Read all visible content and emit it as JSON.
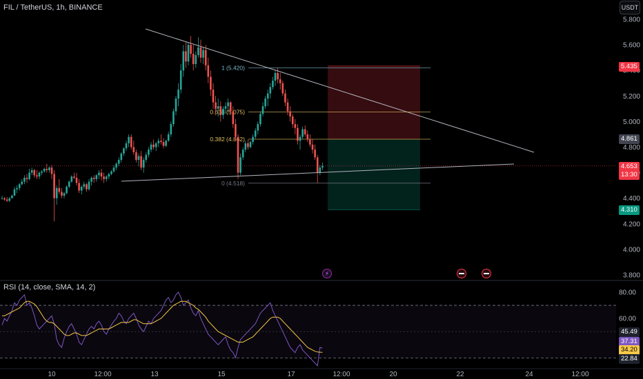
{
  "header": {
    "symbol": "FIL / TetherUS, 1h, BINANCE",
    "currency_button": "USDT"
  },
  "price_axis": {
    "ticks": [
      "5.800",
      "5.600",
      "5.400",
      "5.200",
      "5.000",
      "4.800",
      "4.600",
      "4.400",
      "4.200",
      "4.000",
      "3.800"
    ],
    "current_price": "4.653",
    "countdown": "13:30",
    "target_price": "5.435",
    "entry_price": "4.861",
    "stop_price": "4.310"
  },
  "time_axis": {
    "labels": [
      "10",
      "12:00",
      "13",
      "15",
      "17",
      "12:00",
      "20",
      "22",
      "24",
      "12:00"
    ]
  },
  "fibonacci": {
    "levels": [
      {
        "label": "1 (5.420)",
        "price": 5.42
      },
      {
        "label": "0.618 (5.075)",
        "price": 5.075
      },
      {
        "label": "0.382 (4.862)",
        "price": 4.862
      },
      {
        "label": "0 (4.518)",
        "price": 4.518
      }
    ]
  },
  "position_tool": {
    "entry": 4.861,
    "take_profit": 5.435,
    "stop": 4.31
  },
  "trendlines": {
    "upper": {
      "from": [
        0,
        5.74
      ],
      "to": [
        240,
        4.78
      ]
    },
    "lower": {
      "from": [
        0,
        4.52
      ],
      "to": [
        180,
        4.63
      ]
    }
  },
  "rsi": {
    "title": "RSI (14, close, SMA, 14, 2)",
    "ticks": [
      "80.00",
      "60.00",
      "45.49",
      "37.31",
      "34.20",
      "22.84"
    ],
    "rsi_value": "37.31",
    "sma_value": "34.20",
    "band_upper": "45.49",
    "band_lower": "22.84",
    "band_upper_value": 45.49,
    "band_lower_value": 22.84,
    "overbought": 70,
    "oversold": 30
  },
  "events": {
    "bolt_icon": "lightning-bolt-icon",
    "flag_icon": "us-flag-icon"
  },
  "chart_data": {
    "type": "candlestick",
    "xlabel": "",
    "ylabel": "",
    "ylim": [
      3.8,
      5.86
    ],
    "candles": [
      [
        4.4,
        4.42,
        4.39,
        4.4
      ],
      [
        4.4,
        4.41,
        4.38,
        4.39
      ],
      [
        4.39,
        4.41,
        4.37,
        4.38
      ],
      [
        4.38,
        4.41,
        4.37,
        4.4
      ],
      [
        4.4,
        4.43,
        4.4,
        4.42
      ],
      [
        4.42,
        4.49,
        4.42,
        4.47
      ],
      [
        4.47,
        4.5,
        4.44,
        4.48
      ],
      [
        4.48,
        4.52,
        4.46,
        4.51
      ],
      [
        4.51,
        4.55,
        4.5,
        4.53
      ],
      [
        4.53,
        4.58,
        4.51,
        4.56
      ],
      [
        4.56,
        4.59,
        4.52,
        4.55
      ],
      [
        4.55,
        4.63,
        4.54,
        4.6
      ],
      [
        4.6,
        4.64,
        4.58,
        4.62
      ],
      [
        4.62,
        4.63,
        4.56,
        4.58
      ],
      [
        4.58,
        4.62,
        4.55,
        4.57
      ],
      [
        4.57,
        4.61,
        4.55,
        4.6
      ],
      [
        4.6,
        4.62,
        4.58,
        4.61
      ],
      [
        4.61,
        4.64,
        4.6,
        4.63
      ],
      [
        4.63,
        4.67,
        4.6,
        4.62
      ],
      [
        4.62,
        4.65,
        4.6,
        4.64
      ],
      [
        4.64,
        4.66,
        4.55,
        4.59
      ],
      [
        4.59,
        4.62,
        4.22,
        4.4
      ],
      [
        4.4,
        4.5,
        4.35,
        4.48
      ],
      [
        4.48,
        4.55,
        4.43,
        4.45
      ],
      [
        4.45,
        4.48,
        4.4,
        4.42
      ],
      [
        4.42,
        4.45,
        4.4,
        4.44
      ],
      [
        4.44,
        4.5,
        4.43,
        4.49
      ],
      [
        4.49,
        4.54,
        4.48,
        4.53
      ],
      [
        4.53,
        4.58,
        4.52,
        4.57
      ],
      [
        4.57,
        4.6,
        4.55,
        4.56
      ],
      [
        4.56,
        4.6,
        4.5,
        4.52
      ],
      [
        4.52,
        4.55,
        4.44,
        4.46
      ],
      [
        4.46,
        4.5,
        4.43,
        4.49
      ],
      [
        4.49,
        4.53,
        4.47,
        4.51
      ],
      [
        4.51,
        4.52,
        4.45,
        4.47
      ],
      [
        4.47,
        4.55,
        4.46,
        4.53
      ],
      [
        4.53,
        4.57,
        4.5,
        4.56
      ],
      [
        4.56,
        4.58,
        4.52,
        4.55
      ],
      [
        4.55,
        4.59,
        4.53,
        4.58
      ],
      [
        4.58,
        4.62,
        4.55,
        4.6
      ],
      [
        4.6,
        4.63,
        4.54,
        4.57
      ],
      [
        4.57,
        4.6,
        4.52,
        4.55
      ],
      [
        4.55,
        4.58,
        4.53,
        4.57
      ],
      [
        4.57,
        4.6,
        4.55,
        4.59
      ],
      [
        4.59,
        4.62,
        4.58,
        4.61
      ],
      [
        4.61,
        4.66,
        4.6,
        4.64
      ],
      [
        4.64,
        4.68,
        4.62,
        4.67
      ],
      [
        4.67,
        4.72,
        4.65,
        4.7
      ],
      [
        4.7,
        4.76,
        4.68,
        4.75
      ],
      [
        4.75,
        4.8,
        4.73,
        4.79
      ],
      [
        4.79,
        4.85,
        4.77,
        4.83
      ],
      [
        4.83,
        4.9,
        4.8,
        4.88
      ],
      [
        4.88,
        4.9,
        4.78,
        4.8
      ],
      [
        4.8,
        4.85,
        4.74,
        4.76
      ],
      [
        4.76,
        4.78,
        4.68,
        4.7
      ],
      [
        4.7,
        4.75,
        4.65,
        4.73
      ],
      [
        4.73,
        4.77,
        4.62,
        4.64
      ],
      [
        4.64,
        4.72,
        4.6,
        4.7
      ],
      [
        4.7,
        4.76,
        4.68,
        4.74
      ],
      [
        4.74,
        4.8,
        4.72,
        4.78
      ],
      [
        4.78,
        4.84,
        4.76,
        4.82
      ],
      [
        4.82,
        4.86,
        4.78,
        4.8
      ],
      [
        4.8,
        4.84,
        4.77,
        4.83
      ],
      [
        4.83,
        4.87,
        4.8,
        4.85
      ],
      [
        4.85,
        4.9,
        4.82,
        4.84
      ],
      [
        4.84,
        4.87,
        4.79,
        4.81
      ],
      [
        4.81,
        4.86,
        4.8,
        4.85
      ],
      [
        4.85,
        4.92,
        4.84,
        4.9
      ],
      [
        4.9,
        5.0,
        4.88,
        4.98
      ],
      [
        4.98,
        5.1,
        4.96,
        5.08
      ],
      [
        5.08,
        5.2,
        5.05,
        5.18
      ],
      [
        5.18,
        5.3,
        5.12,
        5.25
      ],
      [
        5.25,
        5.45,
        5.22,
        5.4
      ],
      [
        5.4,
        5.6,
        5.35,
        5.55
      ],
      [
        5.55,
        5.62,
        5.42,
        5.47
      ],
      [
        5.47,
        5.62,
        5.44,
        5.6
      ],
      [
        5.6,
        5.67,
        5.5,
        5.53
      ],
      [
        5.53,
        5.6,
        5.4,
        5.45
      ],
      [
        5.45,
        5.55,
        5.42,
        5.52
      ],
      [
        5.52,
        5.66,
        5.5,
        5.58
      ],
      [
        5.58,
        5.64,
        5.46,
        5.5
      ],
      [
        5.5,
        5.58,
        5.45,
        5.56
      ],
      [
        5.56,
        5.6,
        5.4,
        5.44
      ],
      [
        5.44,
        5.5,
        5.3,
        5.35
      ],
      [
        5.35,
        5.4,
        5.2,
        5.25
      ],
      [
        5.25,
        5.3,
        5.1,
        5.15
      ],
      [
        5.15,
        5.2,
        5.05,
        5.1
      ],
      [
        5.1,
        5.18,
        5.04,
        5.12
      ],
      [
        5.12,
        5.16,
        5.0,
        5.05
      ],
      [
        5.05,
        5.12,
        5.02,
        5.1
      ],
      [
        5.1,
        5.15,
        5.06,
        5.12
      ],
      [
        5.12,
        5.18,
        5.08,
        5.15
      ],
      [
        5.15,
        5.16,
        5.05,
        5.08
      ],
      [
        5.08,
        5.12,
        4.95,
        4.98
      ],
      [
        4.98,
        5.02,
        4.85,
        4.88
      ],
      [
        4.88,
        4.9,
        4.55,
        4.6
      ],
      [
        4.6,
        4.75,
        4.58,
        4.72
      ],
      [
        4.72,
        4.8,
        4.7,
        4.78
      ],
      [
        4.78,
        4.85,
        4.76,
        4.83
      ],
      [
        4.83,
        4.86,
        4.78,
        4.8
      ],
      [
        4.8,
        4.85,
        4.79,
        4.84
      ],
      [
        4.84,
        4.9,
        4.82,
        4.88
      ],
      [
        4.88,
        4.95,
        4.86,
        4.93
      ],
      [
        4.93,
        5.0,
        4.9,
        4.98
      ],
      [
        4.98,
        5.08,
        4.96,
        5.06
      ],
      [
        5.06,
        5.15,
        5.04,
        5.12
      ],
      [
        5.12,
        5.2,
        5.1,
        5.18
      ],
      [
        5.18,
        5.25,
        5.12,
        5.22
      ],
      [
        5.22,
        5.3,
        5.18,
        5.27
      ],
      [
        5.27,
        5.35,
        5.25,
        5.32
      ],
      [
        5.32,
        5.4,
        5.28,
        5.38
      ],
      [
        5.38,
        5.42,
        5.3,
        5.33
      ],
      [
        5.33,
        5.38,
        5.25,
        5.3
      ],
      [
        5.3,
        5.32,
        5.2,
        5.22
      ],
      [
        5.22,
        5.25,
        5.12,
        5.15
      ],
      [
        5.15,
        5.18,
        5.05,
        5.08
      ],
      [
        5.08,
        5.12,
        5.0,
        5.04
      ],
      [
        5.04,
        5.06,
        4.95,
        4.98
      ],
      [
        4.98,
        5.02,
        4.9,
        4.95
      ],
      [
        4.95,
        4.98,
        4.82,
        4.85
      ],
      [
        4.85,
        4.9,
        4.78,
        4.88
      ],
      [
        4.88,
        4.96,
        4.86,
        4.94
      ],
      [
        4.94,
        4.97,
        4.88,
        4.9
      ],
      [
        4.9,
        4.93,
        4.84,
        4.86
      ],
      [
        4.86,
        4.9,
        4.8,
        4.82
      ],
      [
        4.82,
        4.86,
        4.75,
        4.78
      ],
      [
        4.78,
        4.82,
        4.7,
        4.72
      ],
      [
        4.72,
        4.74,
        4.52,
        4.6
      ],
      [
        4.6,
        4.66,
        4.58,
        4.64
      ],
      [
        4.64,
        4.68,
        4.62,
        4.653
      ]
    ],
    "rsi": [
      55,
      60,
      58,
      62,
      66,
      72,
      70,
      74,
      76,
      78,
      70,
      72,
      68,
      62,
      55,
      52,
      54,
      56,
      58,
      60,
      62,
      56,
      44,
      40,
      38,
      45,
      50,
      54,
      56,
      52,
      48,
      42,
      40,
      44,
      48,
      52,
      54,
      52,
      56,
      58,
      55,
      50,
      48,
      52,
      55,
      58,
      60,
      64,
      62,
      58,
      56,
      60,
      62,
      64,
      60,
      55,
      52,
      50,
      54,
      58,
      56,
      60,
      62,
      64,
      66,
      70,
      74,
      76,
      72,
      74,
      78,
      80,
      76,
      70,
      72,
      74,
      68,
      64,
      62,
      66,
      60,
      56,
      52,
      48,
      46,
      44,
      42,
      40,
      42,
      44,
      46,
      40,
      36,
      34,
      30,
      38,
      44,
      46,
      48,
      50,
      52,
      54,
      56,
      60,
      64,
      66,
      68,
      70,
      72,
      66,
      62,
      58,
      54,
      50,
      46,
      42,
      38,
      36,
      34,
      38,
      40,
      36,
      34,
      32,
      30,
      28,
      26,
      24,
      38,
      37.31
    ],
    "rsi_sma": [
      62,
      62,
      63,
      64,
      65,
      66,
      67,
      68,
      70,
      72,
      73,
      73,
      72,
      71,
      69,
      66,
      63,
      60,
      58,
      57,
      57,
      56,
      54,
      52,
      50,
      48,
      47,
      47,
      48,
      49,
      49,
      48,
      47,
      47,
      47,
      48,
      49,
      50,
      51,
      52,
      52,
      52,
      52,
      52,
      53,
      54,
      55,
      56,
      57,
      57,
      57,
      57,
      58,
      59,
      59,
      58,
      57,
      56,
      56,
      56,
      56,
      57,
      58,
      59,
      60,
      62,
      64,
      66,
      68,
      70,
      71,
      72,
      73,
      73,
      73,
      72,
      71,
      70,
      68,
      67,
      65,
      63,
      61,
      58,
      56,
      54,
      52,
      50,
      49,
      48,
      47,
      46,
      45,
      44,
      43,
      42,
      42,
      42,
      43,
      44,
      45,
      46,
      48,
      50,
      52,
      54,
      56,
      58,
      60,
      61,
      61,
      61,
      60,
      58,
      56,
      54,
      52,
      50,
      48,
      46,
      44,
      42,
      40,
      38,
      37,
      36,
      35,
      34.5,
      34.3,
      34.2
    ]
  }
}
